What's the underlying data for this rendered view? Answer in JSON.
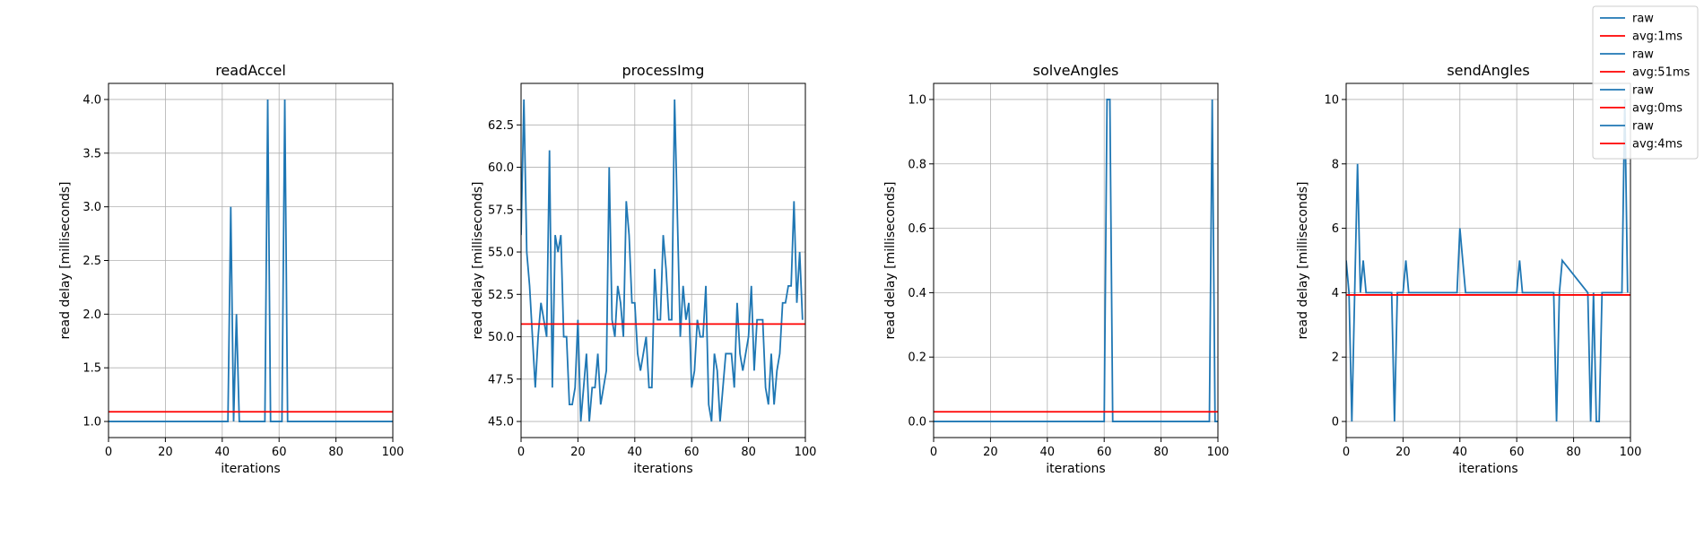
{
  "chart_data": [
    {
      "type": "line",
      "title": "readAccel",
      "xlabel": "iterations",
      "ylabel": "read delay [milliseconds]",
      "xlim": [
        0,
        100
      ],
      "ylim": [
        0.85,
        4.15
      ],
      "xticks": [
        0,
        20,
        40,
        60,
        80,
        100
      ],
      "yticks": [
        1.0,
        1.5,
        2.0,
        2.5,
        3.0,
        3.5,
        4.0
      ],
      "ytick_labels": [
        "1.0",
        "1.5",
        "2.0",
        "2.5",
        "3.0",
        "3.5",
        "4.0"
      ],
      "grid": true,
      "series": [
        {
          "name": "raw",
          "color": "#1f77b4",
          "x": [
            0,
            42,
            43,
            44,
            45,
            46,
            55,
            56,
            57,
            61,
            62,
            63,
            100
          ],
          "y": [
            1,
            1,
            3,
            1,
            2,
            1,
            1,
            4,
            1,
            1,
            4,
            1,
            1
          ]
        },
        {
          "name": "avg:1ms",
          "color": "#ff0000",
          "x": [
            0,
            100
          ],
          "y": [
            1.09,
            1.09
          ]
        }
      ]
    },
    {
      "type": "line",
      "title": "processImg",
      "xlabel": "iterations",
      "ylabel": "read delay [milliseconds]",
      "xlim": [
        0,
        100
      ],
      "ylim": [
        44.05,
        64.95
      ],
      "xticks": [
        0,
        20,
        40,
        60,
        80,
        100
      ],
      "yticks": [
        45.0,
        47.5,
        50.0,
        52.5,
        55.0,
        57.5,
        60.0,
        62.5
      ],
      "ytick_labels": [
        "45.0",
        "47.5",
        "50.0",
        "52.5",
        "55.0",
        "57.5",
        "60.0",
        "62.5"
      ],
      "grid": true,
      "series": [
        {
          "name": "raw",
          "color": "#1f77b4",
          "x": [
            0,
            1,
            2,
            3,
            4,
            5,
            6,
            7,
            8,
            9,
            10,
            11,
            12,
            13,
            14,
            15,
            16,
            17,
            18,
            19,
            20,
            21,
            22,
            23,
            24,
            25,
            26,
            27,
            28,
            29,
            30,
            31,
            32,
            33,
            34,
            35,
            36,
            37,
            38,
            39,
            40,
            41,
            42,
            43,
            44,
            45,
            46,
            47,
            48,
            49,
            50,
            51,
            52,
            53,
            54,
            55,
            56,
            57,
            58,
            59,
            60,
            61,
            62,
            63,
            64,
            65,
            66,
            67,
            68,
            69,
            70,
            71,
            72,
            73,
            74,
            75,
            76,
            77,
            78,
            79,
            80,
            81,
            82,
            83,
            84,
            85,
            86,
            87,
            88,
            89,
            90,
            91,
            92,
            93,
            94,
            95,
            96,
            97,
            98,
            99
          ],
          "y": [
            56,
            64,
            55,
            53,
            50,
            47,
            50,
            52,
            51,
            50,
            61,
            47,
            56,
            55,
            56,
            50,
            50,
            46,
            46,
            47,
            51,
            45,
            47,
            49,
            45,
            47,
            47,
            49,
            46,
            47,
            48,
            60,
            51,
            50,
            53,
            52,
            50,
            58,
            56,
            52,
            52,
            49,
            48,
            49,
            50,
            47,
            47,
            54,
            51,
            51,
            56,
            54,
            51,
            51,
            64,
            57,
            50,
            53,
            51,
            52,
            47,
            48,
            51,
            50,
            50,
            53,
            46,
            45,
            49,
            48,
            45,
            47,
            49,
            49,
            49,
            47,
            52,
            49,
            48,
            49,
            50,
            53,
            48,
            51,
            51,
            51,
            47,
            46,
            49,
            46,
            48,
            49,
            52,
            52,
            53,
            53,
            58,
            52,
            55,
            51
          ]
        },
        {
          "name": "avg:51ms",
          "color": "#ff0000",
          "x": [
            0,
            100
          ],
          "y": [
            50.75,
            50.75
          ]
        }
      ]
    },
    {
      "type": "line",
      "title": "solveAngles",
      "xlabel": "iterations",
      "ylabel": "read delay [milliseconds]",
      "xlim": [
        0,
        100
      ],
      "ylim": [
        -0.05,
        1.05
      ],
      "xticks": [
        0,
        20,
        40,
        60,
        80,
        100
      ],
      "yticks": [
        0.0,
        0.2,
        0.4,
        0.6,
        0.8,
        1.0
      ],
      "ytick_labels": [
        "0.0",
        "0.2",
        "0.4",
        "0.6",
        "0.8",
        "1.0"
      ],
      "grid": true,
      "series": [
        {
          "name": "raw",
          "color": "#1f77b4",
          "x": [
            0,
            60,
            61,
            62,
            63,
            97,
            98,
            99,
            100
          ],
          "y": [
            0,
            0,
            1,
            1,
            0,
            0,
            1,
            0,
            0
          ]
        },
        {
          "name": "avg:0ms",
          "color": "#ff0000",
          "x": [
            0,
            100
          ],
          "y": [
            0.03,
            0.03
          ]
        }
      ]
    },
    {
      "type": "line",
      "title": "sendAngles",
      "xlabel": "iterations",
      "ylabel": "read delay [milliseconds]",
      "xlim": [
        0,
        100
      ],
      "ylim": [
        -0.5,
        10.5
      ],
      "xticks": [
        0,
        20,
        40,
        60,
        80,
        100
      ],
      "yticks": [
        0,
        2,
        4,
        6,
        8,
        10
      ],
      "ytick_labels": [
        "0",
        "2",
        "4",
        "6",
        "8",
        "10"
      ],
      "grid": true,
      "series": [
        {
          "name": "raw",
          "color": "#1f77b4",
          "x": [
            0,
            1,
            2,
            3,
            4,
            5,
            6,
            7,
            8,
            16,
            17,
            18,
            19,
            20,
            21,
            22,
            39,
            40,
            41,
            42,
            60,
            61,
            62,
            73,
            74,
            75,
            76,
            85,
            86,
            87,
            88,
            89,
            90,
            91,
            97,
            98,
            99
          ],
          "y": [
            5,
            4,
            0,
            4,
            8,
            4,
            5,
            4,
            4,
            4,
            0,
            4,
            4,
            4,
            5,
            4,
            4,
            6,
            5,
            4,
            4,
            5,
            4,
            4,
            0,
            4,
            5,
            4,
            0,
            4,
            0,
            0,
            4,
            4,
            4,
            10,
            4
          ]
        },
        {
          "name": "avg:4ms",
          "color": "#ff0000",
          "x": [
            0,
            100
          ],
          "y": [
            3.93,
            3.93
          ]
        }
      ]
    }
  ],
  "legend": {
    "placement": "top-right",
    "entries": [
      {
        "label": "raw",
        "color": "#1f77b4"
      },
      {
        "label": "avg:1ms",
        "color": "#ff0000"
      },
      {
        "label": "raw",
        "color": "#1f77b4"
      },
      {
        "label": "avg:51ms",
        "color": "#ff0000"
      },
      {
        "label": "raw",
        "color": "#1f77b4"
      },
      {
        "label": "avg:0ms",
        "color": "#ff0000"
      },
      {
        "label": "raw",
        "color": "#1f77b4"
      },
      {
        "label": "avg:4ms",
        "color": "#ff0000"
      }
    ]
  }
}
